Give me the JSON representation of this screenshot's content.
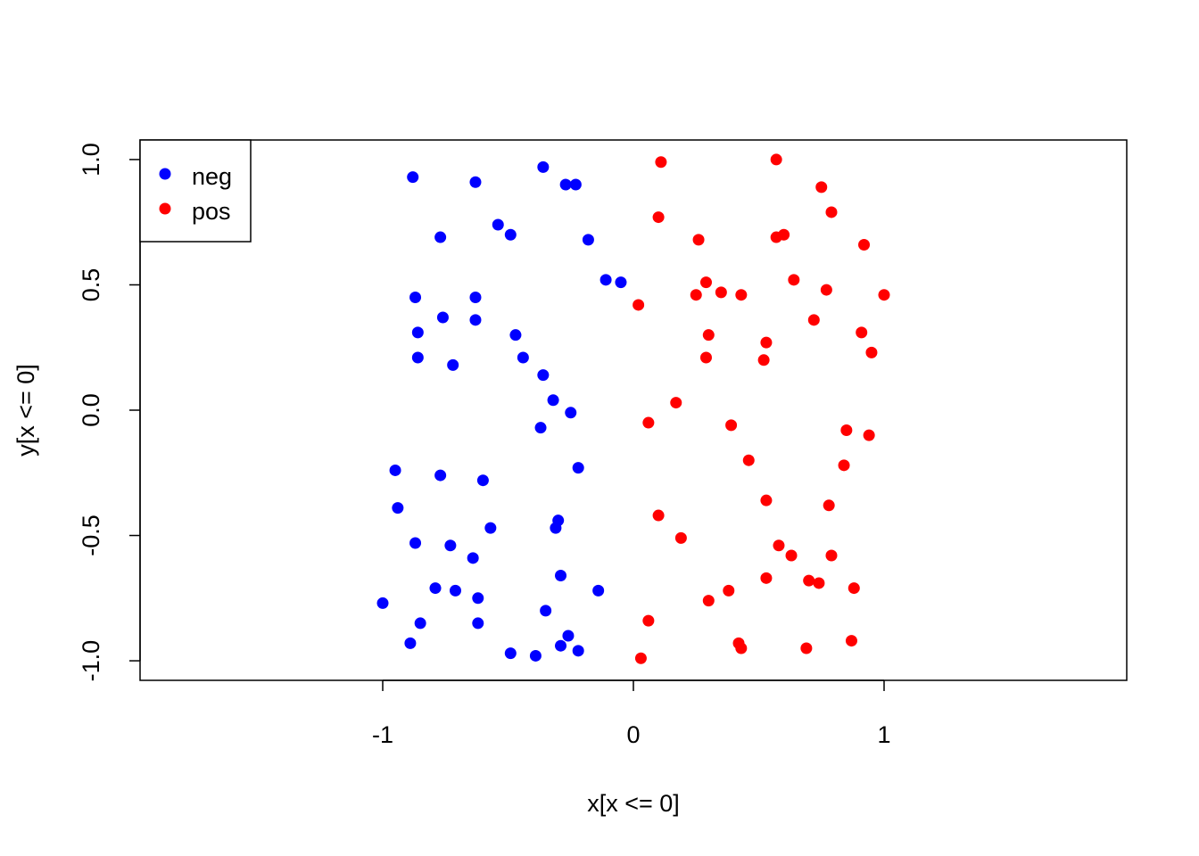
{
  "chart_data": {
    "type": "scatter",
    "title": "",
    "xlabel": "x[x <= 0]",
    "ylabel": "y[x <= 0]",
    "xlim": [
      -1.968,
      1.968
    ],
    "ylim": [
      -1.078,
      1.078
    ],
    "xticks": [
      -1,
      0,
      1
    ],
    "xtick_labels": [
      "-1",
      "0",
      "1"
    ],
    "yticks": [
      -1.0,
      -0.5,
      0.0,
      0.5,
      1.0
    ],
    "ytick_labels": [
      "-1.0",
      "-0.5",
      "0.0",
      "0.5",
      "1.0"
    ],
    "grid": false,
    "legend": {
      "placement": "top-left",
      "entries": [
        "neg",
        "pos"
      ]
    },
    "series": [
      {
        "name": "neg",
        "color": "#0000FF",
        "x": [
          -0.88,
          -0.36,
          -0.63,
          -0.27,
          -0.23,
          -0.54,
          -0.49,
          -0.77,
          -0.18,
          -0.11,
          -0.05,
          -0.87,
          -0.63,
          -0.76,
          -0.63,
          -0.86,
          -0.47,
          -0.44,
          -0.86,
          -0.72,
          -0.36,
          -0.32,
          -0.25,
          -0.37,
          -0.95,
          -0.22,
          -0.77,
          -0.6,
          -0.94,
          -0.57,
          -0.3,
          -0.31,
          -0.87,
          -0.73,
          -0.64,
          -0.29,
          -0.79,
          -0.71,
          -0.14,
          -0.62,
          -1.0,
          -0.35,
          -0.85,
          -0.62,
          -0.26,
          -0.89,
          -0.29,
          -0.49,
          -0.39,
          -0.22
        ],
        "y": [
          0.93,
          0.97,
          0.91,
          0.9,
          0.9,
          0.74,
          0.7,
          0.69,
          0.68,
          0.52,
          0.51,
          0.45,
          0.45,
          0.37,
          0.36,
          0.31,
          0.3,
          0.21,
          0.21,
          0.18,
          0.14,
          0.04,
          -0.01,
          -0.07,
          -0.24,
          -0.23,
          -0.26,
          -0.28,
          -0.39,
          -0.47,
          -0.44,
          -0.47,
          -0.53,
          -0.54,
          -0.59,
          -0.66,
          -0.71,
          -0.72,
          -0.72,
          -0.75,
          -0.77,
          -0.8,
          -0.85,
          -0.85,
          -0.9,
          -0.93,
          -0.94,
          -0.97,
          -0.98,
          -0.96
        ]
      },
      {
        "name": "pos",
        "color": "#FF0000",
        "x": [
          0.11,
          0.57,
          0.75,
          0.1,
          0.79,
          0.26,
          0.57,
          0.6,
          0.92,
          0.64,
          0.77,
          0.29,
          0.35,
          0.25,
          0.43,
          1.0,
          0.02,
          0.72,
          0.3,
          0.91,
          0.53,
          0.95,
          0.29,
          0.52,
          0.17,
          0.06,
          0.39,
          0.85,
          0.94,
          0.46,
          0.84,
          0.53,
          0.78,
          0.1,
          0.19,
          0.58,
          0.63,
          0.79,
          0.53,
          0.7,
          0.74,
          0.38,
          0.88,
          0.3,
          0.06,
          0.42,
          0.43,
          0.69,
          0.87,
          0.03
        ],
        "y": [
          0.99,
          1.0,
          0.89,
          0.77,
          0.79,
          0.68,
          0.69,
          0.7,
          0.66,
          0.52,
          0.48,
          0.51,
          0.47,
          0.46,
          0.46,
          0.46,
          0.42,
          0.36,
          0.3,
          0.31,
          0.27,
          0.23,
          0.21,
          0.2,
          0.03,
          -0.05,
          -0.06,
          -0.08,
          -0.1,
          -0.2,
          -0.22,
          -0.36,
          -0.38,
          -0.42,
          -0.51,
          -0.54,
          -0.58,
          -0.58,
          -0.67,
          -0.68,
          -0.69,
          -0.72,
          -0.71,
          -0.76,
          -0.84,
          -0.93,
          -0.95,
          -0.95,
          -0.92,
          -0.99
        ]
      }
    ]
  }
}
